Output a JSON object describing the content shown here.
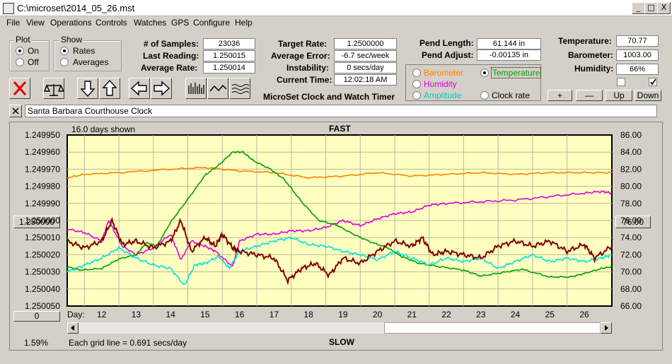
{
  "window": {
    "title": "C:\\microset\\2014_05_26.mst",
    "minimize": "_",
    "maximize": "□",
    "close": "X"
  },
  "menu": [
    "File",
    "View",
    "Operations",
    "Controls",
    "Watches",
    "GPS",
    "Configure",
    "Help"
  ],
  "plot_group": {
    "title": "Plot",
    "on": "On",
    "off": "Off",
    "selected": "On"
  },
  "show_group": {
    "title": "Show",
    "rates": "Rates",
    "averages": "Averages",
    "selected": "Rates"
  },
  "stats": {
    "samples_label": "# of Samples:",
    "samples": "23036",
    "last_reading_label": "Last Reading:",
    "last_reading": "1.250015",
    "average_rate_label": "Average Rate:",
    "average_rate": "1.250014"
  },
  "rates": {
    "target_label": "Target Rate:",
    "target": "1.2500000",
    "avg_error_label": "Average Error:",
    "avg_error": "-6.7 sec/week",
    "instability_label": "Instability:",
    "instability": "0 secs/day",
    "current_time_label": "Current Time:",
    "current_time": "12:02:18 AM"
  },
  "pend": {
    "length_label": "Pend Length:",
    "length": "61.144 in",
    "adjust_label": "Pend Adjust:",
    "adjust": "-0.00135 in"
  },
  "env": {
    "temp_label": "Temperature:",
    "temp": "70.77",
    "baro_label": "Barometer:",
    "baro": "1003.00",
    "humidity_label": "Humidity:",
    "humidity": "66%"
  },
  "overlay": {
    "barometer": "Barometer",
    "temperature": "Temperature",
    "humidity": "Humidity",
    "amplitude": "Amplitude",
    "clock_rate": "Clock rate",
    "selected": "Temperature"
  },
  "scale_buttons": {
    "plus": "+",
    "minus": "—",
    "up": "Up",
    "down": "Down"
  },
  "app_caption": "MicroSet Clock and Watch Timer",
  "clock_name": "Santa Barbara Courthouse Clock",
  "colors": {
    "barometer": "#ff8000",
    "temperature": "#00a000",
    "humidity": "#e000e0",
    "amplitude": "#00e0e0",
    "rate": "#800000",
    "plot_bg": "#ffffc0"
  },
  "chart_data": {
    "type": "line",
    "days_shown": "16.0 days shown",
    "top_label": "FAST",
    "bottom_label": "SLOW",
    "grid_note": "Each grid line = 0.691 secs/day",
    "x_axis_label": "Day:",
    "x_ticks": [
      12,
      13,
      14,
      15,
      16,
      17,
      18,
      19,
      20,
      21,
      22,
      23,
      24,
      25,
      26
    ],
    "x_range": [
      11.0,
      26.8
    ],
    "left_ticks": [
      "1.249950",
      "1.249960",
      "1.249970",
      "1.249980",
      "1.249990",
      "1.250000",
      "1.250010",
      "1.250020",
      "1.250030",
      "1.250040",
      "1.250050"
    ],
    "left_range": [
      1.24995,
      1.25005
    ],
    "right_ticks": [
      "86.00",
      "84.00",
      "82.00",
      "80.00",
      "78.00",
      "76.00",
      "74.00",
      "72.00",
      "70.00",
      "68.00",
      "66.00"
    ],
    "right_range": [
      86,
      66
    ],
    "left_center_box": "1.250000",
    "right_center_box": "76.00",
    "bottom_left_box": "0",
    "percent": "1.59%",
    "series": [
      {
        "name": "Barometer",
        "color": "#ff8000",
        "axis": "left",
        "points": [
          [
            11.0,
            1.249975
          ],
          [
            11.5,
            1.249973
          ],
          [
            12.5,
            1.249972
          ],
          [
            14,
            1.24997
          ],
          [
            15,
            1.249969
          ],
          [
            16,
            1.249971
          ],
          [
            17,
            1.249972
          ],
          [
            18,
            1.249975
          ],
          [
            19,
            1.249974
          ],
          [
            20,
            1.249972
          ],
          [
            21,
            1.249974
          ],
          [
            22,
            1.249973
          ],
          [
            23,
            1.249972
          ],
          [
            24,
            1.249973
          ],
          [
            25,
            1.249972
          ],
          [
            26,
            1.249972
          ],
          [
            26.8,
            1.249972
          ]
        ]
      },
      {
        "name": "Humidity",
        "color": "#e000e0",
        "axis": "left",
        "points": [
          [
            11.0,
            1.250005
          ],
          [
            11.5,
            1.250007
          ],
          [
            12,
            1.250012
          ],
          [
            12.2,
            1.25
          ],
          [
            12.6,
            1.250015
          ],
          [
            13,
            1.25002
          ],
          [
            13.5,
            1.250016
          ],
          [
            14,
            1.250008
          ],
          [
            14.3,
            1.250023
          ],
          [
            14.6,
            1.250012
          ],
          [
            15,
            1.250015
          ],
          [
            15.3,
            1.250018
          ],
          [
            15.8,
            1.250027
          ],
          [
            16,
            1.250012
          ],
          [
            16.5,
            1.250008
          ],
          [
            17,
            1.250008
          ],
          [
            17.5,
            1.250006
          ],
          [
            18,
            1.250006
          ],
          [
            18.5,
            1.250004
          ],
          [
            19,
            1.25
          ],
          [
            19.5,
            1.250003
          ],
          [
            20,
            1.249999
          ],
          [
            20.5,
            1.249996
          ],
          [
            21,
            1.249995
          ],
          [
            21.5,
            1.249991
          ],
          [
            22,
            1.24999
          ],
          [
            23,
            1.249989
          ],
          [
            24,
            1.249988
          ],
          [
            25,
            1.249986
          ],
          [
            26,
            1.249984
          ],
          [
            26.5,
            1.249983
          ],
          [
            26.8,
            1.249984
          ]
        ]
      },
      {
        "name": "Temperature",
        "color": "#00a000",
        "axis": "right",
        "points": [
          [
            11.0,
            70.6
          ],
          [
            11.4,
            70.2
          ],
          [
            12,
            70.4
          ],
          [
            12.5,
            71.5
          ],
          [
            13,
            72.0
          ],
          [
            13.3,
            73.4
          ],
          [
            13.6,
            73.0
          ],
          [
            14,
            75.8
          ],
          [
            14.5,
            78.5
          ],
          [
            15,
            81.3
          ],
          [
            15.4,
            82.5
          ],
          [
            15.8,
            84.0
          ],
          [
            16.1,
            84.0
          ],
          [
            16.4,
            83.0
          ],
          [
            16.9,
            82.0
          ],
          [
            17.3,
            80.8
          ],
          [
            17.8,
            78.2
          ],
          [
            18.3,
            76.0
          ],
          [
            18.8,
            75.5
          ],
          [
            19.3,
            74.4
          ],
          [
            19.8,
            73.5
          ],
          [
            20.3,
            72.8
          ],
          [
            20.7,
            71.8
          ],
          [
            21.2,
            71.0
          ],
          [
            21.8,
            70.6
          ],
          [
            22.5,
            70.2
          ],
          [
            23,
            69.5
          ],
          [
            23.6,
            69.9
          ],
          [
            24.2,
            70.3
          ],
          [
            25,
            69.4
          ],
          [
            25.6,
            69.4
          ],
          [
            26,
            69.8
          ],
          [
            26.5,
            70.4
          ],
          [
            26.8,
            70.6
          ]
        ]
      },
      {
        "name": "Amplitude",
        "color": "#00e0e0",
        "axis": "left",
        "points": [
          [
            11.0,
            1.25003
          ],
          [
            11.5,
            1.250026
          ],
          [
            12,
            1.250022
          ],
          [
            12.5,
            1.250016
          ],
          [
            13,
            1.250022
          ],
          [
            13.5,
            1.250026
          ],
          [
            14,
            1.250028
          ],
          [
            14.4,
            1.250038
          ],
          [
            14.7,
            1.250026
          ],
          [
            15,
            1.250025
          ],
          [
            15.4,
            1.250021
          ],
          [
            15.7,
            1.250028
          ],
          [
            16,
            1.250018
          ],
          [
            16.5,
            1.250015
          ],
          [
            17,
            1.250012
          ],
          [
            17.5,
            1.25001
          ],
          [
            18,
            1.250014
          ],
          [
            18.5,
            1.250015
          ],
          [
            19,
            1.250018
          ],
          [
            19.5,
            1.25002
          ],
          [
            20,
            1.250023
          ],
          [
            20.5,
            1.250018
          ],
          [
            21,
            1.250022
          ],
          [
            21.5,
            1.250026
          ],
          [
            22,
            1.250022
          ],
          [
            22.5,
            1.250024
          ],
          [
            23,
            1.250022
          ],
          [
            23.5,
            1.250028
          ],
          [
            24,
            1.250024
          ],
          [
            24.5,
            1.25002
          ],
          [
            25,
            1.250024
          ],
          [
            25.5,
            1.250022
          ],
          [
            26,
            1.250024
          ],
          [
            26.5,
            1.250022
          ],
          [
            26.8,
            1.25002
          ]
        ]
      },
      {
        "name": "Rate",
        "color": "#800000",
        "axis": "left",
        "points": [
          [
            11.0,
            1.250012
          ],
          [
            11.5,
            1.250016
          ],
          [
            12,
            1.250012
          ],
          [
            12.3,
            1.25
          ],
          [
            12.6,
            1.250014
          ],
          [
            13,
            1.250012
          ],
          [
            13.5,
            1.250016
          ],
          [
            14,
            1.250012
          ],
          [
            14.3,
            1.25
          ],
          [
            14.6,
            1.250018
          ],
          [
            15,
            1.25001
          ],
          [
            15.3,
            1.250015
          ],
          [
            15.5,
            1.250008
          ],
          [
            15.8,
            1.250016
          ],
          [
            16,
            1.250018
          ],
          [
            16.5,
            1.25002
          ],
          [
            17,
            1.250022
          ],
          [
            17.4,
            1.250035
          ],
          [
            17.8,
            1.250028
          ],
          [
            18.2,
            1.250025
          ],
          [
            18.6,
            1.250032
          ],
          [
            19,
            1.250022
          ],
          [
            19.5,
            1.250025
          ],
          [
            20,
            1.250018
          ],
          [
            20.5,
            1.250012
          ],
          [
            21,
            1.250015
          ],
          [
            21.3,
            1.25001
          ],
          [
            21.6,
            1.25002
          ],
          [
            22,
            1.250018
          ],
          [
            22.5,
            1.25002
          ],
          [
            23,
            1.250022
          ],
          [
            23.5,
            1.250015
          ],
          [
            24,
            1.250012
          ],
          [
            24.5,
            1.250015
          ],
          [
            25,
            1.250012
          ],
          [
            25.5,
            1.250018
          ],
          [
            26,
            1.250014
          ],
          [
            26.3,
            1.250022
          ],
          [
            26.8,
            1.250015
          ]
        ]
      }
    ]
  }
}
